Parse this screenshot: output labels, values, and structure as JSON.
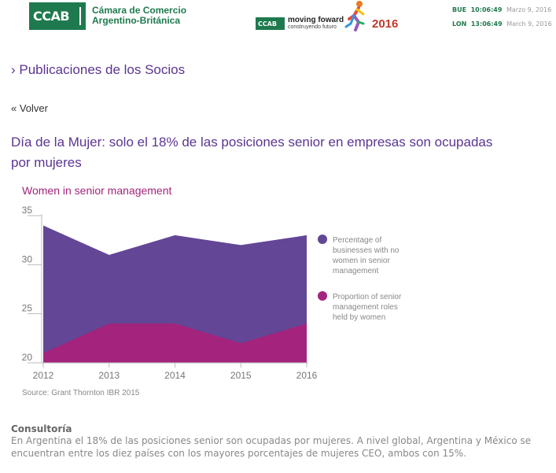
{
  "header": {
    "logo_text": "CCAB",
    "org_line1": "Cámara de Comercio",
    "org_line2": "Argentino-Británica",
    "small_logo_text": "CCAB",
    "tagline_main": "moving foward",
    "tagline_sub": "construyendo futuro",
    "year": "2016",
    "clocks": [
      {
        "city": "BUE",
        "time": "10:06:49",
        "date": "Marzo 9, 2016"
      },
      {
        "city": "LON",
        "time": "13:06:49",
        "date": "March 9, 2016"
      }
    ]
  },
  "section_title": "› Publicaciones de los Socios",
  "back_link": "« Volver",
  "article": {
    "title": "Día de la Mujer: solo el 18% de las posiciones senior en empresas son ocupadas por mujeres",
    "category": "Consultoría",
    "body": "En Argentina el 18% de las posiciones senior son ocupadas por mujeres. A nivel global, Argentina y México se encuentran entre los diez países con los mayores porcentajes de mujeres CEO, ambos con 15%."
  },
  "chart_data": {
    "type": "area",
    "title": "Women in senior management",
    "source": "Source: Grant Thornton IBR 2015",
    "x": [
      "2012",
      "2013",
      "2014",
      "2015",
      "2016"
    ],
    "ylim": [
      20,
      35
    ],
    "yticks": [
      20,
      25,
      30,
      35
    ],
    "grid": false,
    "legend_position": "right",
    "series": [
      {
        "name": "Percentage of businesses with no women in senior management",
        "values": [
          34,
          31,
          33,
          32,
          33
        ],
        "color": "#634696"
      },
      {
        "name": "Proportion of senior management roles held by women",
        "values": [
          21,
          24,
          24,
          22,
          24
        ],
        "color": "#a3237d"
      }
    ]
  }
}
